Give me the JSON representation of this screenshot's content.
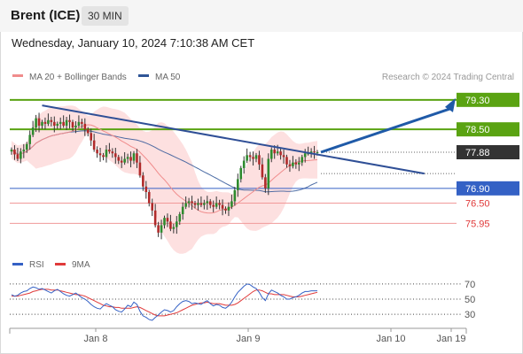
{
  "header": {
    "instrument": "Brent (ICE)",
    "interval": "30 MIN"
  },
  "datetime": "Wednesday, January 10, 2024 7:10:38 AM CET",
  "legend": {
    "ma20": "MA 20 + Bollinger Bands",
    "ma50": "MA 50",
    "credit": "Research © 2024 Trading Central"
  },
  "rsi_legend": {
    "rsi": "RSI",
    "ma9": "9MA"
  },
  "colors": {
    "green": "#5aa312",
    "blue": "#3461c5",
    "red": "#e03a3a",
    "band": "#fde0e0",
    "ma20": "#f08c8c",
    "ma50": "#2f5597",
    "trend": "#2f4f96",
    "arrow": "#1f5aa8",
    "price_tag": "#333333"
  },
  "chart_data": [
    {
      "type": "candlestick",
      "x_ticks": [
        "Jan 8",
        "Jan 9",
        "Jan 10",
        "Jan 19"
      ],
      "ylim": [
        75.0,
        79.8
      ],
      "close": [
        77.95,
        77.82,
        77.7,
        77.9,
        77.95,
        78.1,
        78.35,
        78.55,
        78.8,
        78.6,
        78.7,
        78.65,
        78.75,
        78.7,
        78.6,
        78.65,
        78.7,
        78.6,
        78.75,
        78.7,
        78.55,
        78.6,
        78.7,
        78.65,
        78.5,
        78.4,
        78.2,
        77.95,
        77.85,
        77.8,
        77.75,
        77.95,
        77.9,
        77.85,
        77.75,
        77.65,
        77.6,
        77.7,
        77.75,
        77.65,
        77.85,
        77.6,
        77.25,
        76.95,
        76.8,
        76.5,
        76.3,
        75.9,
        75.7,
        75.9,
        76.1,
        76.0,
        75.8,
        75.85,
        76.0,
        76.2,
        76.4,
        76.5,
        76.55,
        76.5,
        76.45,
        76.5,
        76.45,
        76.5,
        76.55,
        76.45,
        76.4,
        76.5,
        76.45,
        76.35,
        76.3,
        76.4,
        76.55,
        76.85,
        77.15,
        77.45,
        77.65,
        77.8,
        77.75,
        77.7,
        77.8,
        77.55,
        77.2,
        76.9,
        77.7,
        77.95,
        77.85,
        77.9,
        77.8,
        77.75,
        77.55,
        77.5,
        77.6,
        77.55,
        77.6,
        77.75,
        77.85,
        77.85,
        77.9,
        77.88,
        77.88
      ],
      "levels": [
        {
          "value": 79.3,
          "label": "79.30",
          "kind": "resistance"
        },
        {
          "value": 78.5,
          "label": "78.50",
          "kind": "resistance"
        },
        {
          "value": 77.88,
          "label": "77.88",
          "kind": "last-price"
        },
        {
          "value": 76.9,
          "label": "76.90",
          "kind": "pivot"
        },
        {
          "value": 76.5,
          "label": "76.50",
          "kind": "support"
        },
        {
          "value": 75.95,
          "label": "75.95",
          "kind": "support"
        }
      ],
      "trendline": [
        {
          "i": 10,
          "v": 79.15
        },
        {
          "i": 135,
          "v": 77.3
        }
      ],
      "projection_target": 79.3,
      "series": [
        {
          "name": "MA 20 + Bollinger Bands"
        },
        {
          "name": "MA 50"
        }
      ]
    },
    {
      "type": "line",
      "y_ticks": [
        "70",
        "50",
        "30"
      ],
      "ylim": [
        15,
        85
      ],
      "series": [
        {
          "name": "RSI",
          "values": [
            56,
            54,
            55,
            58,
            60,
            61,
            64,
            66,
            65,
            63,
            64,
            62,
            60,
            58,
            61,
            63,
            60,
            57,
            55,
            54,
            56,
            58,
            55,
            52,
            50,
            47,
            43,
            40,
            38,
            37,
            41,
            44,
            42,
            40,
            36,
            34,
            33,
            37,
            42,
            40,
            46,
            43,
            34,
            28,
            26,
            23,
            22,
            26,
            29,
            33,
            36,
            35,
            33,
            35,
            40,
            44,
            47,
            48,
            47,
            44,
            45,
            44,
            43,
            46,
            48,
            44,
            41,
            43,
            42,
            39,
            38,
            41,
            46,
            53,
            59,
            63,
            67,
            70,
            69,
            66,
            64,
            59,
            52,
            48,
            57,
            62,
            60,
            58,
            55,
            53,
            50,
            50,
            52,
            53,
            55,
            58,
            60,
            60,
            61,
            61,
            61
          ]
        },
        {
          "name": "9MA",
          "values": [
            54,
            54,
            54,
            55,
            56,
            57,
            58,
            60,
            61,
            62,
            63,
            63,
            63,
            62,
            62,
            62,
            61,
            60,
            59,
            58,
            57,
            56,
            56,
            55,
            54,
            52,
            50,
            48,
            46,
            44,
            42,
            41,
            40,
            40,
            39,
            39,
            38,
            38,
            38,
            38,
            39,
            40,
            39,
            37,
            35,
            33,
            31,
            29,
            28,
            28,
            28,
            29,
            30,
            31,
            32,
            34,
            36,
            38,
            40,
            42,
            43,
            44,
            45,
            45,
            46,
            45,
            44,
            44,
            44,
            43,
            42,
            42,
            42,
            43,
            45,
            48,
            51,
            54,
            57,
            60,
            62,
            62,
            61,
            59,
            57,
            57,
            56,
            56,
            56,
            56,
            55,
            54,
            53,
            53,
            53,
            54,
            55,
            56,
            57,
            58,
            59
          ]
        }
      ]
    }
  ]
}
